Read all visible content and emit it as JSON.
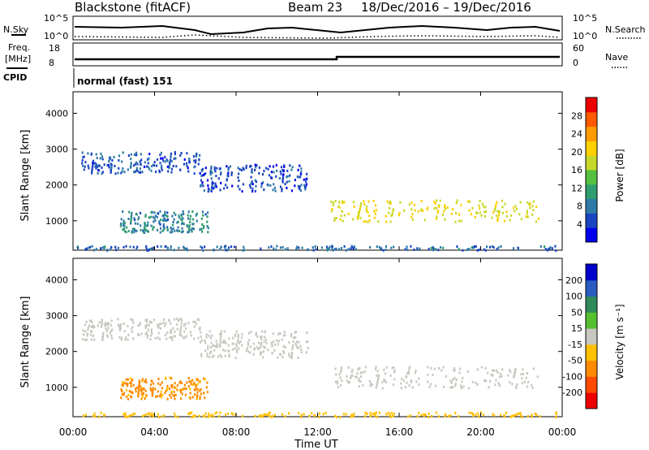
{
  "header": {
    "radar": "Blackstone (fitACF)",
    "beam": "Beam 23",
    "date_range": "18/Dec/2016 – 19/Dec/2016"
  },
  "summary_panels": {
    "nsky_label": "N.Sky",
    "nsearch_label": "N.Search",
    "noise_ticks_left": [
      "10^5",
      "10^0"
    ],
    "noise_ticks_right": [
      "10^5",
      "10^0"
    ],
    "freq_label_1": "Freq.",
    "freq_label_2": "[MHz]",
    "freq_ticks": [
      "18",
      "8"
    ],
    "nave_label": "Nave",
    "nave_ticks": [
      "60",
      "0"
    ],
    "cpid_label": "CPID",
    "cpid_value": "normal (fast) 151"
  },
  "chart_data": [
    {
      "type": "heatmap",
      "name": "power",
      "ylabel": "Slant Range [km]",
      "ylim": [
        180,
        4600
      ],
      "yticks": [
        "1000",
        "2000",
        "3000",
        "4000"
      ],
      "ytick_values": [
        1000,
        2000,
        3000,
        4000
      ],
      "xlim": [
        0,
        24
      ],
      "colorbar": {
        "label": "Power [dB]",
        "range": [
          0,
          32
        ],
        "ticks": [
          "4",
          "8",
          "12",
          "16",
          "20",
          "24",
          "28"
        ],
        "tick_values": [
          4,
          8,
          12,
          16,
          20,
          24,
          28
        ],
        "colors": [
          "#0000ee",
          "#1a44c0",
          "#2f7aa8",
          "#2f9d6e",
          "#55c040",
          "#c8d828",
          "#ffd000",
          "#ff9a00",
          "#ff5a00",
          "#ee0000"
        ]
      },
      "regions": [
        {
          "t": [
            0.4,
            6.2
          ],
          "range": [
            2350,
            2950
          ],
          "value": 6
        },
        {
          "t": [
            6.2,
            11.5
          ],
          "range": [
            1850,
            2600
          ],
          "value": 5
        },
        {
          "t": [
            2.3,
            6.6
          ],
          "range": [
            700,
            1300
          ],
          "value": 9
        },
        {
          "t": [
            12.6,
            22.8
          ],
          "range": [
            1000,
            1600
          ],
          "value": 19
        },
        {
          "t": [
            0.0,
            24.0
          ],
          "range": [
            200,
            330
          ],
          "value": 7
        }
      ]
    },
    {
      "type": "heatmap",
      "name": "velocity",
      "ylabel": "Slant Range [km]",
      "ylim": [
        180,
        4600
      ],
      "yticks": [
        "1000",
        "2000",
        "3000",
        "4000"
      ],
      "ytick_values": [
        1000,
        2000,
        3000,
        4000
      ],
      "xlim": [
        0,
        24
      ],
      "colorbar": {
        "label": "Velocity [m s⁻¹]",
        "ticks": [
          "200",
          "100",
          "50",
          "15",
          "-15",
          "-50",
          "-100",
          "-200"
        ],
        "colors": [
          "#0000cc",
          "#2a5cc0",
          "#2f8a5a",
          "#55c030",
          "#c8c8c0",
          "#ffc000",
          "#ff8a00",
          "#ff4a00",
          "#ee0000"
        ]
      },
      "regions": [
        {
          "t": [
            0.4,
            6.2
          ],
          "range": [
            2350,
            2950
          ],
          "value": 0
        },
        {
          "t": [
            6.2,
            11.5
          ],
          "range": [
            1850,
            2600
          ],
          "value": 0
        },
        {
          "t": [
            2.3,
            6.6
          ],
          "range": [
            700,
            1300
          ],
          "value": -60
        },
        {
          "t": [
            12.6,
            22.8
          ],
          "range": [
            1000,
            1600
          ],
          "value": 0
        },
        {
          "t": [
            0.0,
            24.0
          ],
          "range": [
            200,
            330
          ],
          "value": -30
        }
      ]
    }
  ],
  "xaxis": {
    "label": "Time UT",
    "ticks": [
      "00:00",
      "04:00",
      "08:00",
      "12:00",
      "16:00",
      "20:00",
      "00:00"
    ],
    "tick_values": [
      0,
      4,
      8,
      12,
      16,
      20,
      24
    ]
  }
}
